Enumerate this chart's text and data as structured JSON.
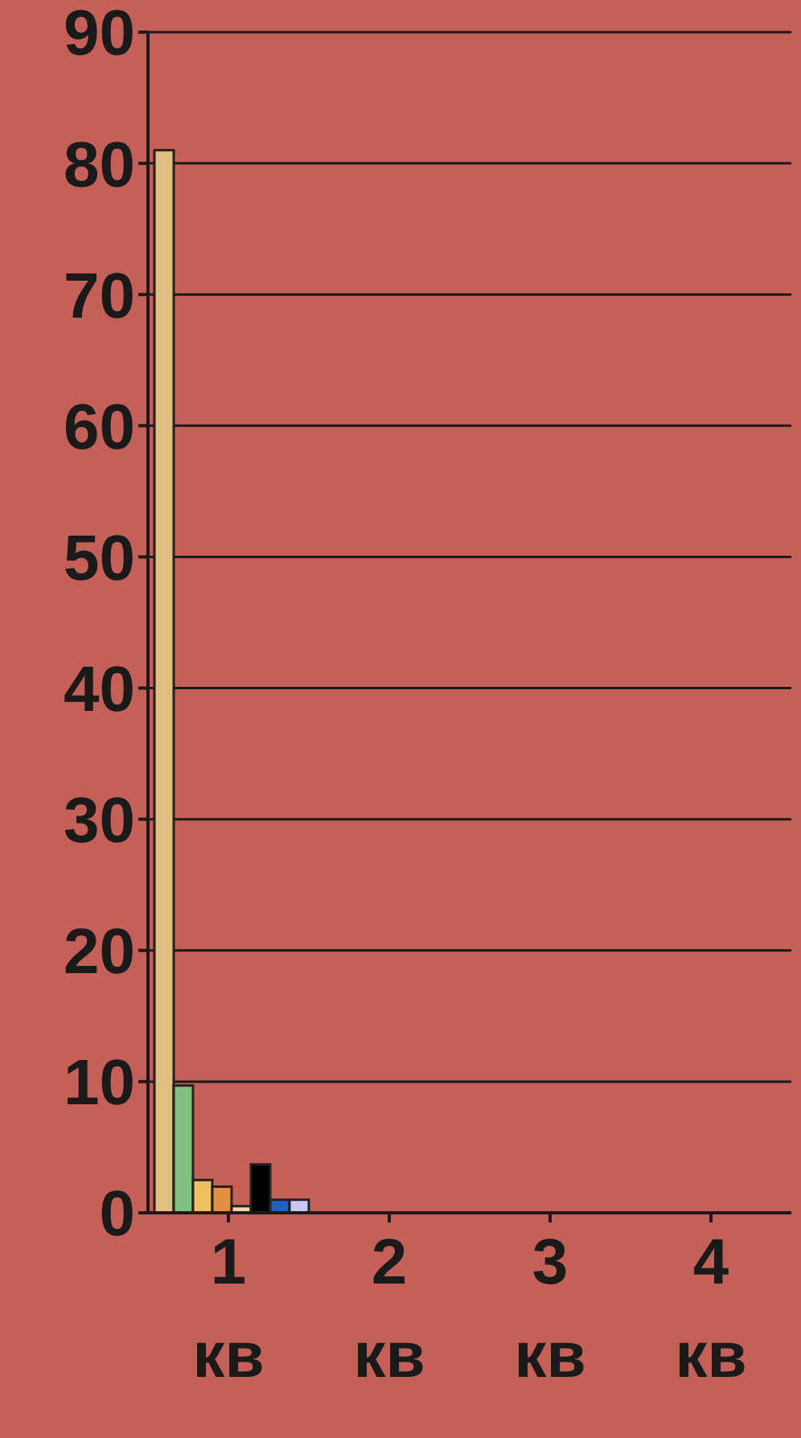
{
  "chart_data": {
    "type": "bar",
    "categories": [
      "1 кв",
      "2 кв",
      "3 кв",
      "4 кв"
    ],
    "series": [
      {
        "color": "#e0c080",
        "values": [
          81,
          0,
          0,
          0
        ]
      },
      {
        "color": "#80c080",
        "values": [
          9.7,
          0,
          0,
          0
        ]
      },
      {
        "color": "#f0c060",
        "values": [
          2.5,
          0,
          0,
          0
        ]
      },
      {
        "color": "#e09040",
        "values": [
          2.0,
          0,
          0,
          0
        ]
      },
      {
        "color": "#f0d8a0",
        "values": [
          0.5,
          0,
          0,
          0
        ]
      },
      {
        "color": "#000000",
        "values": [
          3.7,
          0,
          0,
          0
        ]
      },
      {
        "color": "#2060c0",
        "values": [
          1.0,
          0,
          0,
          0
        ]
      },
      {
        "color": "#c8c8f0",
        "values": [
          1.0,
          0,
          0,
          0
        ]
      }
    ],
    "ylim": [
      0,
      90
    ],
    "yticks": [
      0,
      10,
      20,
      30,
      40,
      50,
      60,
      70,
      80,
      90
    ],
    "grid": "y",
    "legend": false
  }
}
